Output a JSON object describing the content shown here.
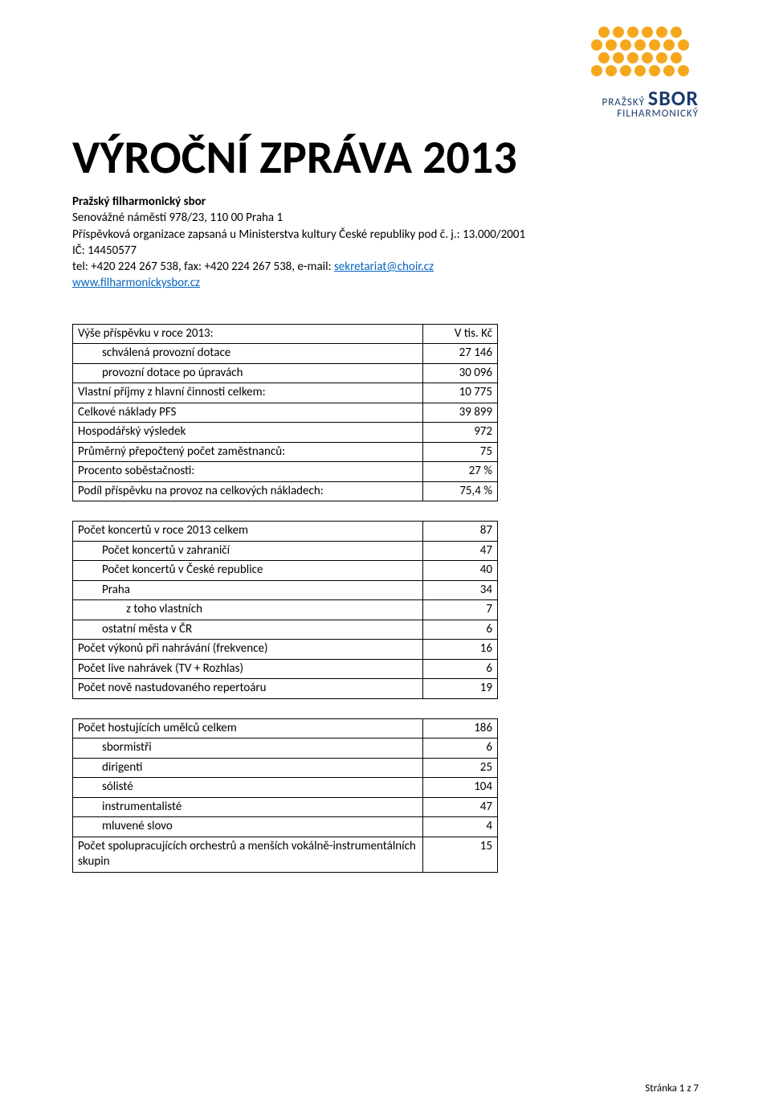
{
  "logo": {
    "top_text_small": "PRAŽSKÝ",
    "top_text_big": "SBOR",
    "bottom_text": "FILHARMONICKÝ",
    "dot_color": "#f5a81c",
    "text_color": "#1a3a6e"
  },
  "title": "VÝROČNÍ ZPRÁVA 2013",
  "info": {
    "org_bold": "Pražský filharmonický sbor",
    "address": "Senovážné náměstí 978/23, 110 00 Praha 1",
    "reg": "Příspěvková organizace zapsaná u Ministerstva kultury České republiky pod č. j.: 13.000/2001",
    "ic": "IČ: 14450577",
    "contact_prefix": "tel:  +420 224 267 538, fax: +420 224 267 538, e-mail: ",
    "email": "sekretariat@choir.cz",
    "web": "www.filharmonickysbor.cz"
  },
  "table1_border": "#000000",
  "table1": [
    {
      "label": "Výše příspěvku v roce 2013:",
      "value": "V tis. Kč",
      "indent": 0
    },
    {
      "label": "schválená provozní dotace",
      "value": "27 146",
      "indent": 1
    },
    {
      "label": "provozní dotace po úpravách",
      "value": "30 096",
      "indent": 1
    },
    {
      "label": "Vlastní příjmy z hlavní činnosti celkem:",
      "value": "10 775",
      "indent": 0
    },
    {
      "label": "Celkové náklady PFS",
      "value": "39 899",
      "indent": 0
    },
    {
      "label": "Hospodářský výsledek",
      "value": "972",
      "indent": 0
    },
    {
      "label": "Průměrný přepočtený počet zaměstnanců:",
      "value": "75",
      "indent": 0
    },
    {
      "label": "Procento soběstačnosti:",
      "value": "27 %",
      "indent": 0
    },
    {
      "label": "Podíl příspěvku na provoz na celkových nákladech:",
      "value": "75,4 %",
      "indent": 0
    }
  ],
  "table2": [
    {
      "label": "Počet koncertů v roce 2013 celkem",
      "value": "87",
      "indent": 0
    },
    {
      "label": "Počet koncertů v zahraničí",
      "value": "47",
      "indent": 1
    },
    {
      "label": "Počet koncertů v České republice",
      "value": "40",
      "indent": 1
    },
    {
      "label": "Praha",
      "value": "34",
      "indent": 1
    },
    {
      "label": "z toho vlastních",
      "value": "7",
      "indent": 2
    },
    {
      "label": "ostatní města v ČR",
      "value": "6",
      "indent": 1
    },
    {
      "label": "Počet výkonů při nahrávání (frekvence)",
      "value": "16",
      "indent": 0
    },
    {
      "label": "Počet live nahrávek (TV + Rozhlas)",
      "value": "6",
      "indent": 0
    },
    {
      "label": "Počet nově nastudovaného repertoáru",
      "value": "19",
      "indent": 0
    }
  ],
  "table3": [
    {
      "label": "Počet hostujících umělců celkem",
      "value": "186",
      "indent": 0
    },
    {
      "label": "sbormistři",
      "value": "6",
      "indent": 1
    },
    {
      "label": "dirigenti",
      "value": "25",
      "indent": 1
    },
    {
      "label": "sólisté",
      "value": "104",
      "indent": 1
    },
    {
      "label": "instrumentalisté",
      "value": "47",
      "indent": 1
    },
    {
      "label": "mluvené slovo",
      "value": "4",
      "indent": 1
    },
    {
      "label": "Počet spolupracujících orchestrů a menších vokálně-instrumentálních skupin",
      "value": "15",
      "indent": 0
    }
  ],
  "footer": "Stránka 1 z 7"
}
